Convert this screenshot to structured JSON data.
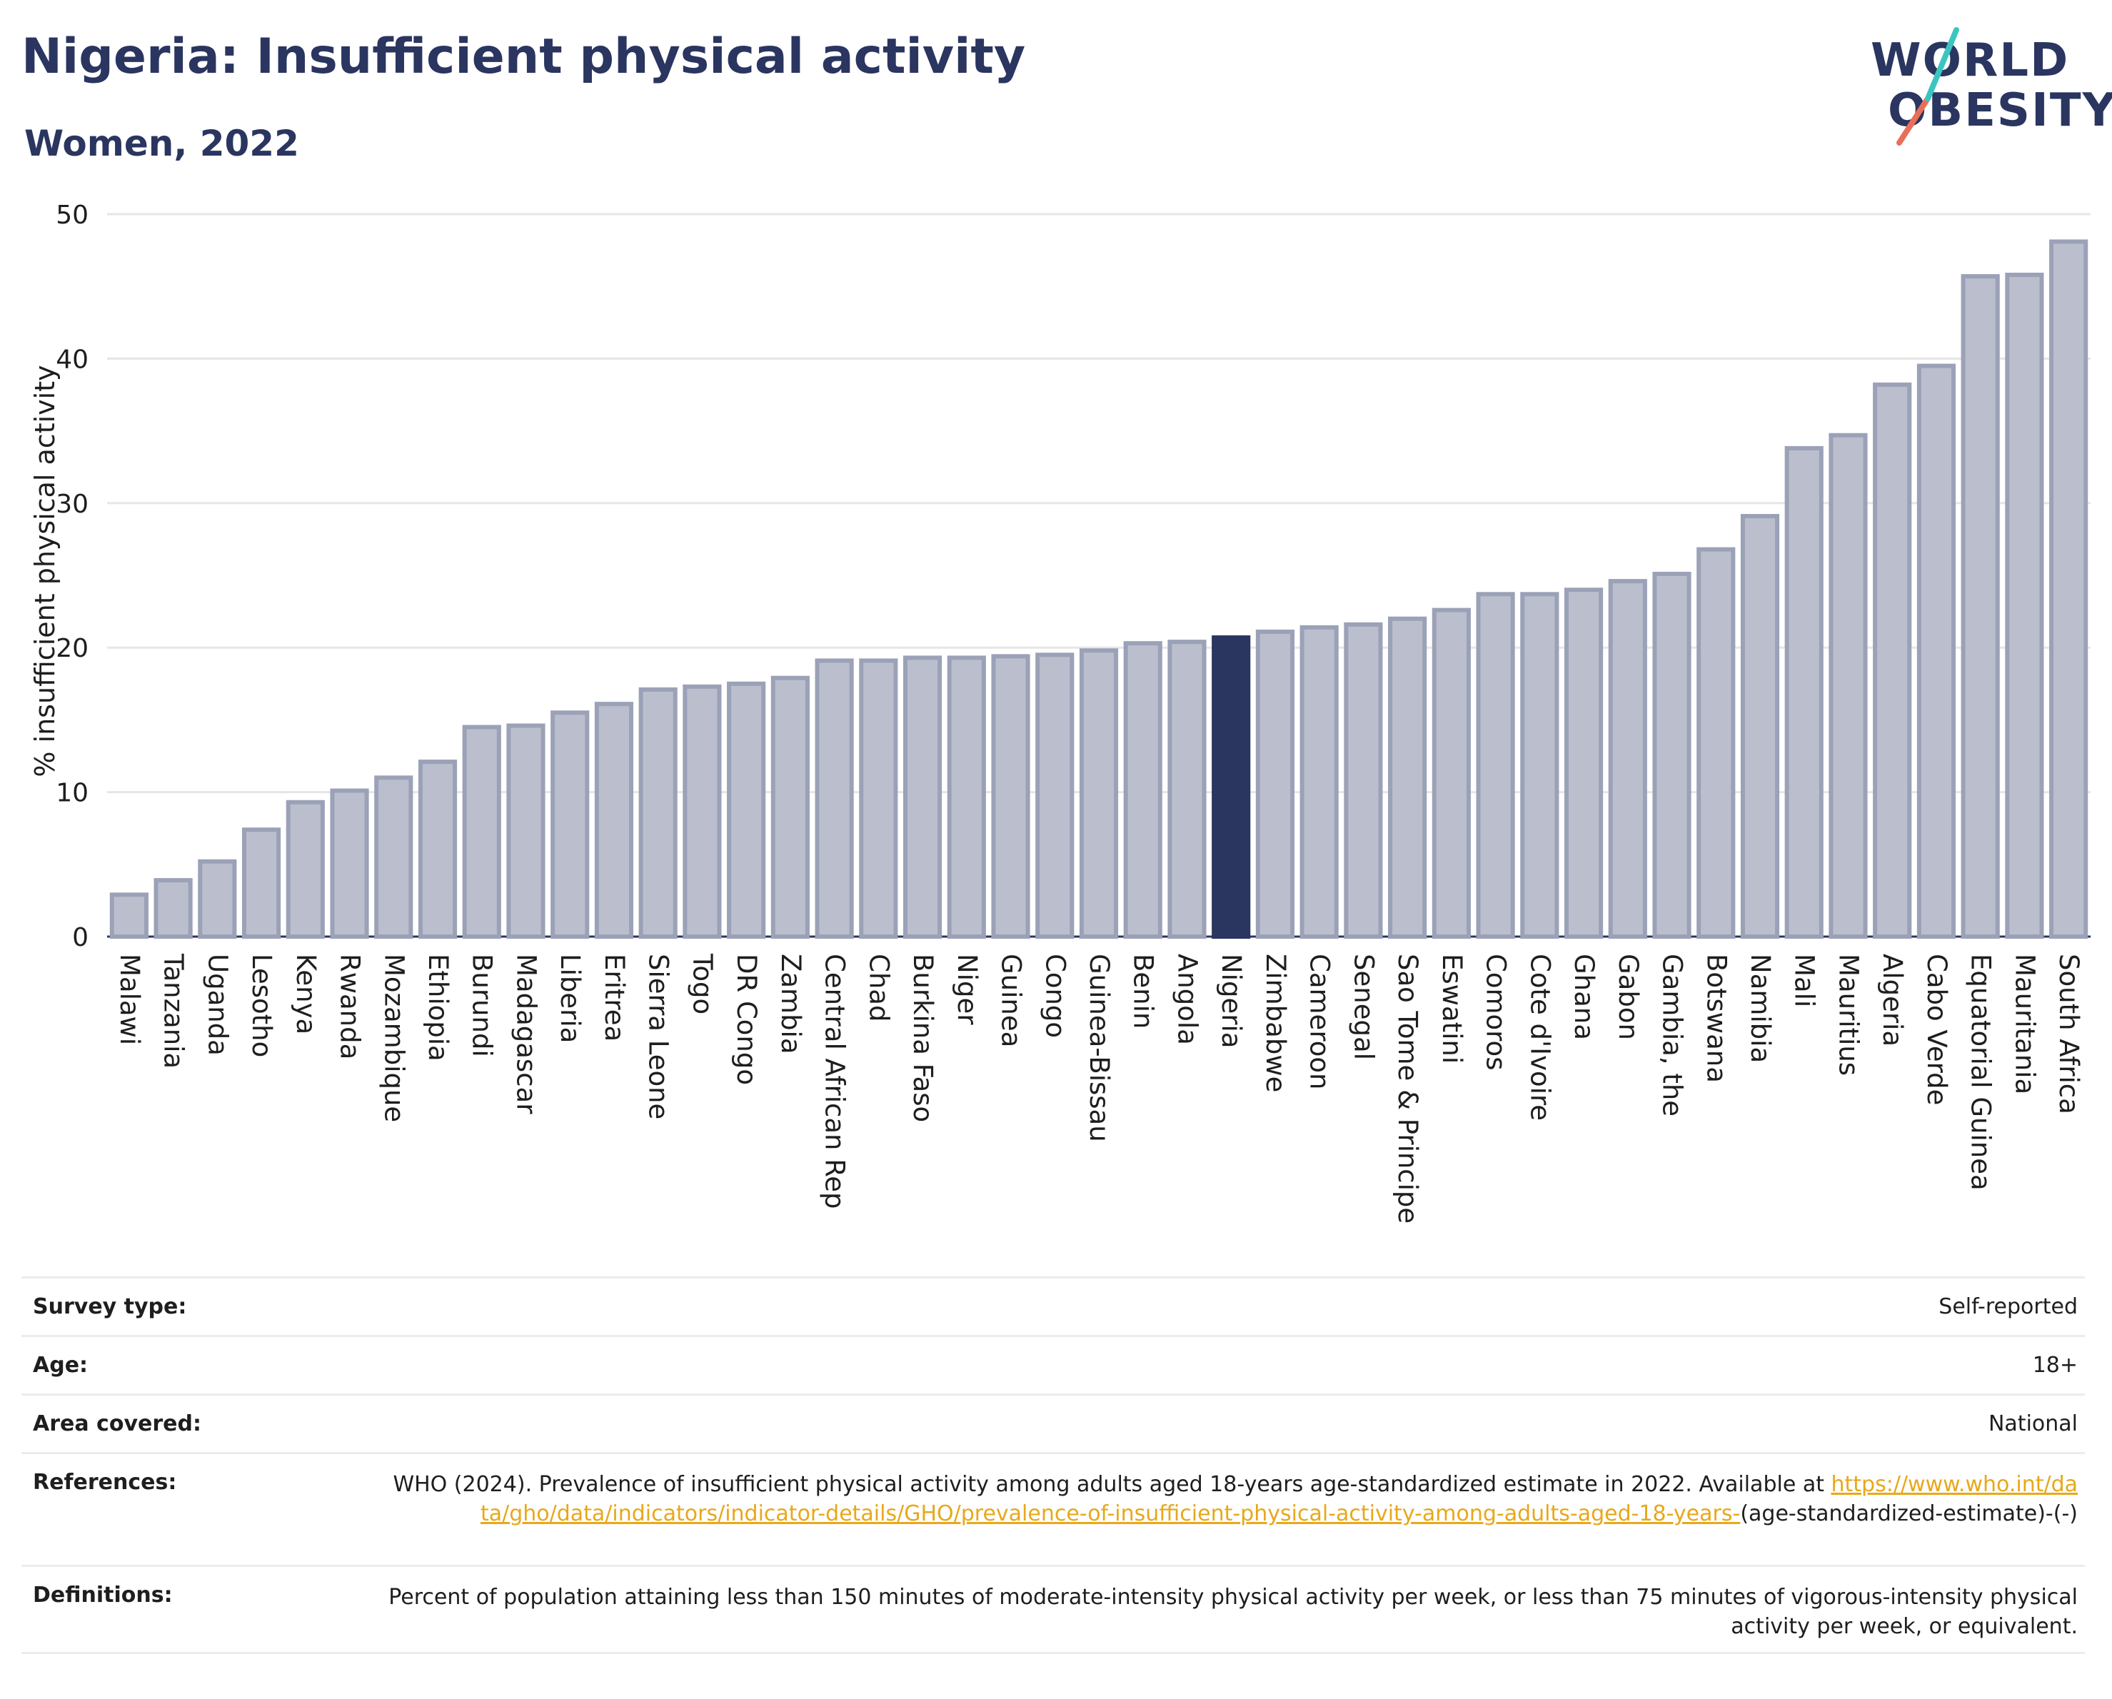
{
  "header": {
    "title": "Nigeria: Insufficient physical activity",
    "subtitle": "Women, 2022"
  },
  "logo": {
    "line1": "WORLD",
    "line2": "OBESITY",
    "accent_teal": "#3cc5c0",
    "accent_coral": "#e8705a"
  },
  "chart_data": {
    "type": "bar",
    "ylabel": "% insufficient physical activity",
    "ylim": [
      0,
      50
    ],
    "yticks": [
      0,
      10,
      20,
      30,
      40,
      50
    ],
    "grid": true,
    "highlight": "Nigeria",
    "colors": {
      "bar": "#bbbfcd",
      "bar_border": "#9ba1b7",
      "highlight": "#2a3560"
    },
    "categories": [
      "Malawi",
      "Tanzania",
      "Uganda",
      "Lesotho",
      "Kenya",
      "Rwanda",
      "Mozambique",
      "Ethiopia",
      "Burundi",
      "Madagascar",
      "Liberia",
      "Eritrea",
      "Sierra Leone",
      "Togo",
      "DR Congo",
      "Zambia",
      "Central African Rep",
      "Chad",
      "Burkina Faso",
      "Niger",
      "Guinea",
      "Congo",
      "Guinea-Bissau",
      "Benin",
      "Angola",
      "Nigeria",
      "Zimbabwe",
      "Cameroon",
      "Senegal",
      "Sao Tome & Principe",
      "Eswatini",
      "Comoros",
      "Cote d'Ivoire",
      "Ghana",
      "Gabon",
      "Gambia, the",
      "Botswana",
      "Namibia",
      "Mali",
      "Mauritius",
      "Algeria",
      "Cabo Verde",
      "Equatorial Guinea",
      "Mauritania",
      "South Africa"
    ],
    "values": [
      2.9,
      3.9,
      5.2,
      7.4,
      9.3,
      10.1,
      11.0,
      12.1,
      14.5,
      14.6,
      15.5,
      16.1,
      17.1,
      17.3,
      17.5,
      17.9,
      19.1,
      19.1,
      19.3,
      19.3,
      19.4,
      19.5,
      19.8,
      20.3,
      20.4,
      20.7,
      21.1,
      21.4,
      21.6,
      22.0,
      22.6,
      23.7,
      23.7,
      24.0,
      24.6,
      25.1,
      26.8,
      29.1,
      33.8,
      34.7,
      38.2,
      39.5,
      45.7,
      45.8,
      48.1
    ]
  },
  "info": {
    "survey_label": "Survey type:",
    "survey_value": "Self-reported",
    "age_label": "Age:",
    "age_value": "18+",
    "area_label": "Area covered:",
    "area_value": "National",
    "ref_label": "References:",
    "ref_text": "WHO (2024). Prevalence of insufficient physical activity among adults aged 18-years age-standardized estimate in 2022. Available at",
    "ref_link": "https://www.who.int/data/gho/data/indicators/indicator-details/GHO/prevalence-of-insufficient-physical-activity-among-adults-aged-18-years-",
    "ref_tail": "(age-standardized-estimate)-(-)",
    "def_label": "Definitions:",
    "def_text": "Percent of population attaining less than 150 minutes of moderate-intensity physical activity per week, or less than 75 minutes of vigorous-intensity physical activity per week, or equivalent."
  }
}
